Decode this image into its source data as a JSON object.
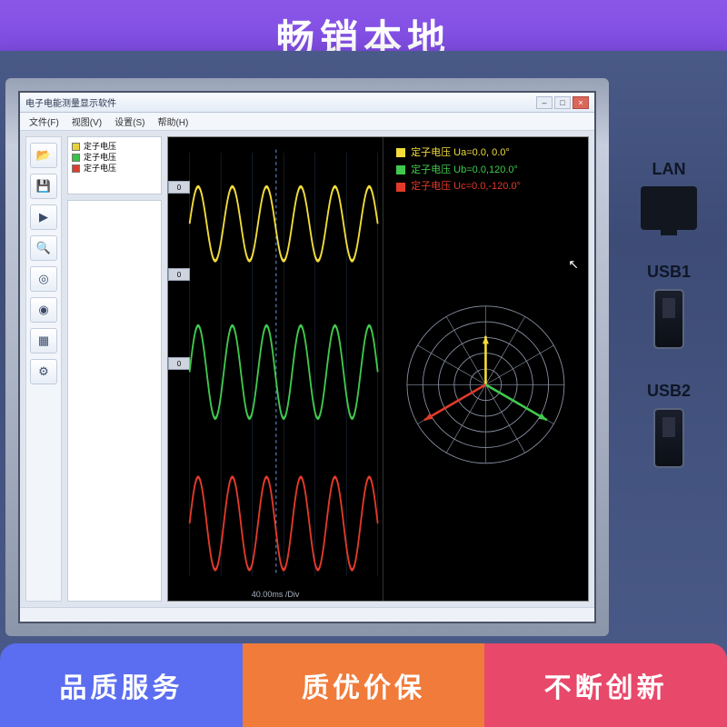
{
  "banner": {
    "text": "畅销本地"
  },
  "badges": {
    "b1": "品质服务",
    "b2": "质优价保",
    "b3": "不断创新",
    "colors": {
      "b1": "#5b6df0",
      "b2": "#f07b3a",
      "b3": "#e8486a"
    }
  },
  "app": {
    "title": "电子电能测量显示软件",
    "titlebar_buttons": {
      "min": "–",
      "max": "□",
      "close": "×"
    },
    "menu": [
      "文件(F)",
      "视图(V)",
      "设置(S)",
      "帮助(H)"
    ]
  },
  "toolbar": {
    "items": [
      {
        "name": "open-icon",
        "glyph": "📂"
      },
      {
        "name": "save-icon",
        "glyph": "💾"
      },
      {
        "name": "play-icon",
        "glyph": "▶"
      },
      {
        "name": "zoom-icon",
        "glyph": "🔍"
      },
      {
        "name": "target-icon",
        "glyph": "◎"
      },
      {
        "name": "scope-icon",
        "glyph": "◉"
      },
      {
        "name": "grid-icon",
        "glyph": "▦"
      },
      {
        "name": "gear-icon",
        "glyph": "⚙"
      }
    ]
  },
  "channel_legend": {
    "rows": [
      {
        "color": "#e8d23a",
        "label": "定子电压"
      },
      {
        "color": "#3ac24a",
        "label": "定子电压"
      },
      {
        "color": "#d8402e",
        "label": "定子电压"
      }
    ]
  },
  "waveforms": {
    "background": "#000000",
    "grid_color": "#223048",
    "cursor_x": 0.46,
    "x_label": "40.00ms  /Div",
    "tick_labels": [
      "0",
      "0",
      "0"
    ],
    "series": [
      {
        "color": "#f2dc3a",
        "amp": 24,
        "baseline": 56,
        "cycles": 5.5,
        "width": 2
      },
      {
        "color": "#40c94e",
        "amp": 30,
        "baseline": 152,
        "cycles": 5.5,
        "width": 2
      },
      {
        "color": "#e23a2a",
        "amp": 30,
        "baseline": 250,
        "cycles": 5.5,
        "width": 2
      }
    ]
  },
  "polar": {
    "background": "#000000",
    "ring_color": "#8a94a6",
    "rings": 5,
    "spokes": 12,
    "legend": [
      {
        "color": "#f2dc3a",
        "text": "定子电压 Ua=0.0, 0.0°"
      },
      {
        "color": "#40c94e",
        "text": "定子电压 Ub=0.0,120.0°"
      },
      {
        "color": "#e23a2a",
        "text": "定子电压 Uc=0.0,-120.0°"
      }
    ],
    "vectors": [
      {
        "color": "#f2dc3a",
        "angle_deg": 90,
        "mag": 0.62,
        "width": 3
      },
      {
        "color": "#40c94e",
        "angle_deg": -30,
        "mag": 0.9,
        "width": 3
      },
      {
        "color": "#e23a2a",
        "angle_deg": 210,
        "mag": 0.9,
        "width": 3
      }
    ],
    "cursor_glyph": "↖"
  },
  "ports": {
    "lan_label": "LAN",
    "usb1_label": "USB1",
    "usb2_label": "USB2"
  }
}
